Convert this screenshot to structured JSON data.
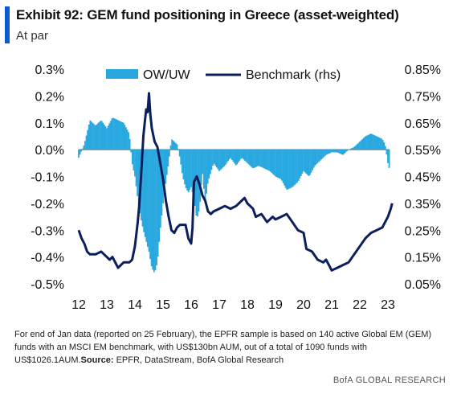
{
  "header": {
    "title": "Exhibit 92: GEM fund positioning in Greece (asset-weighted)",
    "subtitle": "At par"
  },
  "colors": {
    "accent": "#0a5ad2",
    "bars": "#29a8e0",
    "line": "#0b1f5c"
  },
  "chart_data": {
    "type": "bar",
    "legend_placement": "top",
    "grid": false,
    "x_tick_labels": [
      "12",
      "13",
      "14",
      "15",
      "16",
      "17",
      "18",
      "19",
      "20",
      "21",
      "22",
      "23"
    ],
    "xlim": [
      2012,
      2023
    ],
    "y_left": {
      "ylim": [
        -0.5,
        0.3
      ],
      "tick_labels": [
        "0.3%",
        "0.2%",
        "0.1%",
        "0.0%",
        "-0.1%",
        "-0.2%",
        "-0.3%",
        "-0.4%",
        "-0.5%"
      ],
      "tick_values": [
        0.3,
        0.2,
        0.1,
        0.0,
        -0.1,
        -0.2,
        -0.3,
        -0.4,
        -0.5
      ]
    },
    "y_right": {
      "ylim": [
        0.05,
        0.85
      ],
      "tick_labels": [
        "0.85%",
        "0.75%",
        "0.65%",
        "0.55%",
        "0.45%",
        "0.35%",
        "0.25%",
        "0.15%",
        "0.05%"
      ],
      "tick_values": [
        0.85,
        0.75,
        0.65,
        0.55,
        0.45,
        0.35,
        0.25,
        0.15,
        0.05
      ]
    },
    "series": [
      {
        "name": "OW/UW",
        "kind": "bar",
        "axis": "left",
        "points": [
          [
            2012.0,
            -0.03
          ],
          [
            2012.2,
            0.02
          ],
          [
            2012.4,
            0.11
          ],
          [
            2012.6,
            0.09
          ],
          [
            2012.8,
            0.11
          ],
          [
            2013.0,
            0.08
          ],
          [
            2013.2,
            0.12
          ],
          [
            2013.4,
            0.11
          ],
          [
            2013.6,
            0.1
          ],
          [
            2013.8,
            0.06
          ],
          [
            2013.9,
            -0.05
          ],
          [
            2014.0,
            -0.1
          ],
          [
            2014.1,
            -0.18
          ],
          [
            2014.2,
            -0.25
          ],
          [
            2014.3,
            -0.3
          ],
          [
            2014.4,
            -0.34
          ],
          [
            2014.5,
            -0.38
          ],
          [
            2014.6,
            -0.44
          ],
          [
            2014.7,
            -0.46
          ],
          [
            2014.8,
            -0.42
          ],
          [
            2014.9,
            -0.3
          ],
          [
            2015.0,
            -0.2
          ],
          [
            2015.1,
            -0.12
          ],
          [
            2015.2,
            -0.05
          ],
          [
            2015.3,
            0.04
          ],
          [
            2015.4,
            0.03
          ],
          [
            2015.5,
            0.02
          ],
          [
            2015.6,
            -0.03
          ],
          [
            2015.7,
            -0.1
          ],
          [
            2015.8,
            -0.14
          ],
          [
            2015.9,
            -0.16
          ],
          [
            2016.0,
            -0.14
          ],
          [
            2016.1,
            -0.18
          ],
          [
            2016.2,
            -0.26
          ],
          [
            2016.3,
            -0.22
          ],
          [
            2016.4,
            -0.08
          ],
          [
            2016.5,
            -0.2
          ],
          [
            2016.6,
            -0.12
          ],
          [
            2016.8,
            -0.05
          ],
          [
            2017.0,
            -0.08
          ],
          [
            2017.2,
            -0.06
          ],
          [
            2017.4,
            -0.03
          ],
          [
            2017.6,
            -0.06
          ],
          [
            2017.8,
            -0.03
          ],
          [
            2018.0,
            -0.05
          ],
          [
            2018.2,
            -0.07
          ],
          [
            2018.4,
            -0.06
          ],
          [
            2018.6,
            -0.07
          ],
          [
            2018.8,
            -0.08
          ],
          [
            2019.0,
            -0.1
          ],
          [
            2019.2,
            -0.11
          ],
          [
            2019.4,
            -0.15
          ],
          [
            2019.6,
            -0.14
          ],
          [
            2019.8,
            -0.12
          ],
          [
            2020.0,
            -0.08
          ],
          [
            2020.2,
            -0.1
          ],
          [
            2020.4,
            -0.06
          ],
          [
            2020.6,
            -0.04
          ],
          [
            2020.8,
            -0.02
          ],
          [
            2021.0,
            -0.01
          ],
          [
            2021.2,
            -0.01
          ],
          [
            2021.4,
            -0.02
          ],
          [
            2021.6,
            0.0
          ],
          [
            2021.8,
            0.01
          ],
          [
            2022.0,
            0.03
          ],
          [
            2022.2,
            0.05
          ],
          [
            2022.4,
            0.06
          ],
          [
            2022.6,
            0.05
          ],
          [
            2022.8,
            0.04
          ],
          [
            2022.9,
            0.02
          ],
          [
            2023.0,
            -0.05
          ],
          [
            2023.05,
            -0.07
          ]
        ]
      },
      {
        "name": "Benchmark (rhs)",
        "kind": "line",
        "axis": "right",
        "points": [
          [
            2012.0,
            0.25
          ],
          [
            2012.1,
            0.22
          ],
          [
            2012.2,
            0.2
          ],
          [
            2012.3,
            0.17
          ],
          [
            2012.4,
            0.16
          ],
          [
            2012.6,
            0.16
          ],
          [
            2012.8,
            0.17
          ],
          [
            2013.0,
            0.15
          ],
          [
            2013.1,
            0.14
          ],
          [
            2013.2,
            0.15
          ],
          [
            2013.4,
            0.11
          ],
          [
            2013.6,
            0.13
          ],
          [
            2013.8,
            0.13
          ],
          [
            2013.9,
            0.14
          ],
          [
            2014.0,
            0.19
          ],
          [
            2014.1,
            0.28
          ],
          [
            2014.15,
            0.34
          ],
          [
            2014.2,
            0.42
          ],
          [
            2014.3,
            0.6
          ],
          [
            2014.35,
            0.65
          ],
          [
            2014.4,
            0.7
          ],
          [
            2014.45,
            0.69
          ],
          [
            2014.5,
            0.76
          ],
          [
            2014.55,
            0.68
          ],
          [
            2014.6,
            0.63
          ],
          [
            2014.7,
            0.58
          ],
          [
            2014.8,
            0.56
          ],
          [
            2014.9,
            0.5
          ],
          [
            2015.0,
            0.44
          ],
          [
            2015.1,
            0.36
          ],
          [
            2015.2,
            0.3
          ],
          [
            2015.3,
            0.25
          ],
          [
            2015.4,
            0.24
          ],
          [
            2015.5,
            0.26
          ],
          [
            2015.6,
            0.27
          ],
          [
            2015.8,
            0.27
          ],
          [
            2015.9,
            0.22
          ],
          [
            2016.0,
            0.2
          ],
          [
            2016.05,
            0.26
          ],
          [
            2016.1,
            0.43
          ],
          [
            2016.2,
            0.45
          ],
          [
            2016.3,
            0.42
          ],
          [
            2016.4,
            0.38
          ],
          [
            2016.5,
            0.36
          ],
          [
            2016.6,
            0.32
          ],
          [
            2016.7,
            0.31
          ],
          [
            2016.8,
            0.32
          ],
          [
            2017.0,
            0.33
          ],
          [
            2017.2,
            0.34
          ],
          [
            2017.4,
            0.33
          ],
          [
            2017.6,
            0.34
          ],
          [
            2017.8,
            0.36
          ],
          [
            2017.9,
            0.37
          ],
          [
            2018.0,
            0.35
          ],
          [
            2018.2,
            0.33
          ],
          [
            2018.3,
            0.3
          ],
          [
            2018.5,
            0.31
          ],
          [
            2018.7,
            0.28
          ],
          [
            2018.9,
            0.3
          ],
          [
            2019.0,
            0.29
          ],
          [
            2019.2,
            0.3
          ],
          [
            2019.4,
            0.31
          ],
          [
            2019.6,
            0.28
          ],
          [
            2019.8,
            0.25
          ],
          [
            2020.0,
            0.24
          ],
          [
            2020.1,
            0.18
          ],
          [
            2020.3,
            0.17
          ],
          [
            2020.5,
            0.14
          ],
          [
            2020.7,
            0.13
          ],
          [
            2020.8,
            0.14
          ],
          [
            2020.9,
            0.12
          ],
          [
            2021.0,
            0.1
          ],
          [
            2021.2,
            0.11
          ],
          [
            2021.4,
            0.12
          ],
          [
            2021.6,
            0.13
          ],
          [
            2021.8,
            0.16
          ],
          [
            2022.0,
            0.19
          ],
          [
            2022.2,
            0.22
          ],
          [
            2022.4,
            0.24
          ],
          [
            2022.6,
            0.25
          ],
          [
            2022.8,
            0.26
          ],
          [
            2023.0,
            0.3
          ],
          [
            2023.1,
            0.33
          ],
          [
            2023.15,
            0.35
          ]
        ]
      }
    ]
  },
  "footnote": {
    "text": "For end of Jan data (reported on 25 February), the EPFR sample is based on 140 active Global EM (GEM) funds with an MSCI EM benchmark, with US$130bn  AUM, out of a total of 1090 funds with US$1026.1AUM.",
    "source_label": "Source:",
    "source_text": "EPFR, DataStream, BofA Global Research"
  },
  "brand": "BofA GLOBAL RESEARCH"
}
